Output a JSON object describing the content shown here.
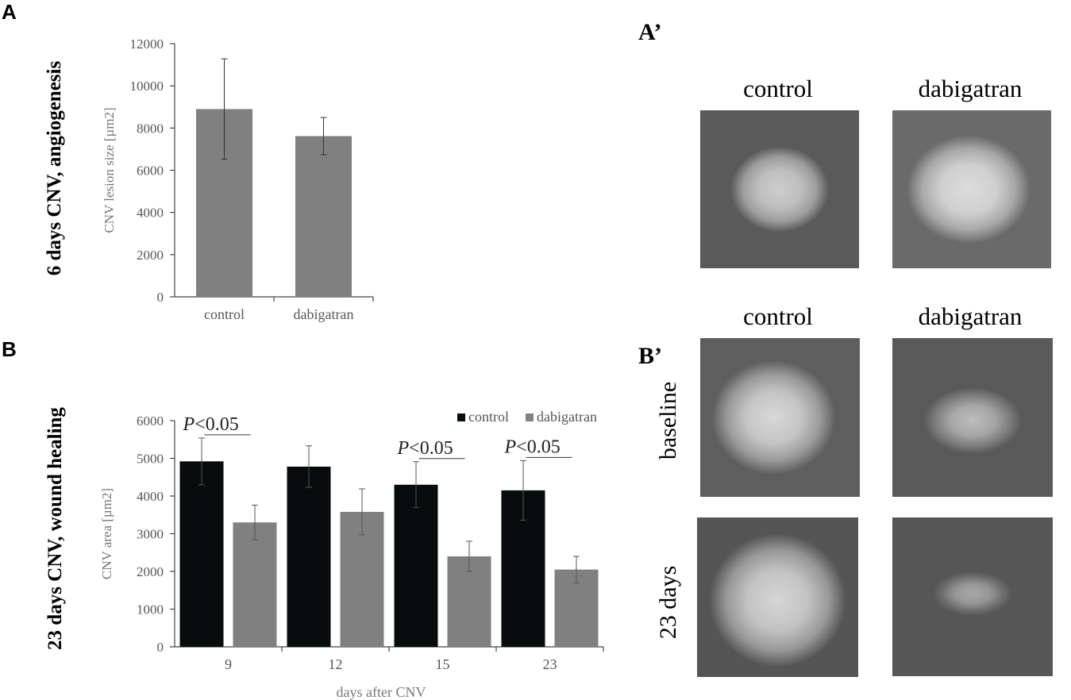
{
  "panels": {
    "a_letter": "A",
    "b_letter": "B",
    "a_prime_letter": "A’",
    "b_prime_letter": "B’",
    "a_side_title": "6 days CNV, angiogenesis",
    "b_side_title": "23 days CNV, wound healing"
  },
  "images": {
    "a_prime": {
      "col_labels": [
        "control",
        "dabigatran"
      ]
    },
    "b_prime": {
      "col_labels": [
        "control",
        "dabigatran"
      ],
      "row_labels": [
        "baseline",
        "23 days"
      ]
    }
  },
  "chart_data": [
    {
      "type": "bar",
      "categories": [
        "control",
        "dabigatran"
      ],
      "values": [
        8900,
        7620
      ],
      "errors": [
        2380,
        880
      ],
      "ylabel": "CNV lesion size [µm2]",
      "xlabel": "",
      "ylim": [
        0,
        12000
      ],
      "yticks": [
        "0",
        "2000",
        "4000",
        "6000",
        "8000",
        "10000",
        "12000"
      ],
      "color": "#808080",
      "grid": false
    },
    {
      "type": "bar",
      "categories": [
        "9",
        "12",
        "15",
        "23"
      ],
      "series": [
        {
          "name": "control",
          "values": [
            4920,
            4780,
            4300,
            4150
          ],
          "errors": [
            620,
            550,
            610,
            790
          ],
          "color": "#080c0c"
        },
        {
          "name": "dabigatran",
          "values": [
            3300,
            3580,
            2400,
            2050
          ],
          "errors": [
            460,
            610,
            400,
            350
          ],
          "color": "#808080"
        }
      ],
      "xlabel": "days after CNV",
      "ylabel": "CNV area [µm2]",
      "ylim": [
        0,
        6000
      ],
      "yticks": [
        "0",
        "1000",
        "2000",
        "3000",
        "4000",
        "5000",
        "6000"
      ],
      "legend_position": "top-right",
      "annotations": [
        {
          "category": "9",
          "p": "P",
          "text": "<0.05"
        },
        {
          "category": "15",
          "p": "P",
          "text": "<0.05"
        },
        {
          "category": "23",
          "p": "P",
          "text": "<0.05"
        }
      ],
      "grid": false
    }
  ]
}
